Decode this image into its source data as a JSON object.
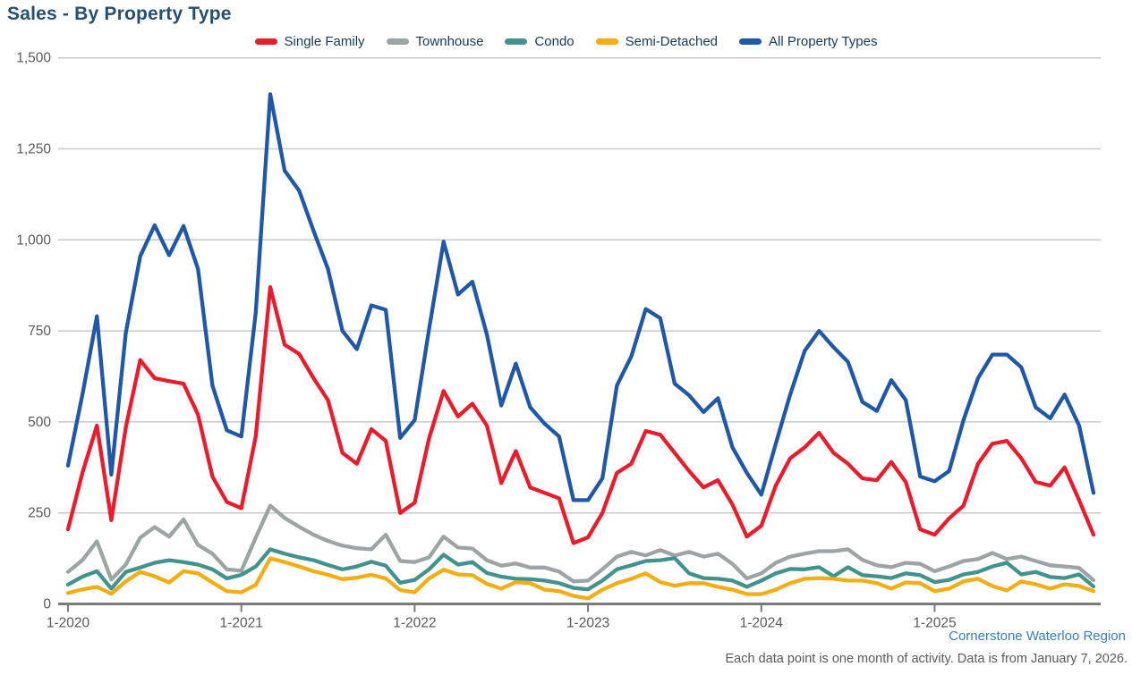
{
  "ui": {
    "title": "Sales - By Property Type",
    "footer": {
      "source": "Cornerstone Waterloo Region",
      "note": "Each data point is one month of activity. Data is from January 7, 2026."
    }
  },
  "chart_data": {
    "type": "line",
    "title": "Sales - By Property Type",
    "xlabel": "",
    "ylabel": "",
    "ylim": [
      0,
      1500
    ],
    "grid": true,
    "legend_position": "top-center",
    "x_labels": [
      "1-2020",
      "2-2020",
      "3-2020",
      "4-2020",
      "5-2020",
      "6-2020",
      "7-2020",
      "8-2020",
      "9-2020",
      "10-2020",
      "11-2020",
      "12-2020",
      "1-2021",
      "2-2021",
      "3-2021",
      "4-2021",
      "5-2021",
      "6-2021",
      "7-2021",
      "8-2021",
      "9-2021",
      "10-2021",
      "11-2021",
      "12-2021",
      "1-2022",
      "2-2022",
      "3-2022",
      "4-2022",
      "5-2022",
      "6-2022",
      "7-2022",
      "8-2022",
      "9-2022",
      "10-2022",
      "11-2022",
      "12-2022",
      "1-2023",
      "2-2023",
      "3-2023",
      "4-2023",
      "5-2023",
      "6-2023",
      "7-2023",
      "8-2023",
      "9-2023",
      "10-2023",
      "11-2023",
      "12-2023",
      "1-2024",
      "2-2024",
      "3-2024",
      "4-2024",
      "5-2024",
      "6-2024",
      "7-2024",
      "8-2024",
      "9-2024",
      "10-2024",
      "11-2024",
      "12-2024",
      "1-2025",
      "2-2025",
      "3-2025",
      "4-2025",
      "5-2025",
      "6-2025",
      "7-2025",
      "8-2025",
      "9-2025",
      "10-2025",
      "11-2025",
      "12-2025"
    ],
    "x_axis": {
      "ticks": [
        {
          "index": 0,
          "label": "1-2020"
        },
        {
          "index": 12,
          "label": "1-2021"
        },
        {
          "index": 24,
          "label": "1-2022"
        },
        {
          "index": 36,
          "label": "1-2023"
        },
        {
          "index": 48,
          "label": "1-2024"
        },
        {
          "index": 60,
          "label": "1-2025"
        }
      ]
    },
    "y_axis": {
      "ticks": [
        {
          "value": 1500,
          "label": "1,500"
        },
        {
          "value": 1250,
          "label": "1,250"
        },
        {
          "value": 1000,
          "label": "1,000"
        },
        {
          "value": 750,
          "label": "750"
        },
        {
          "value": 500,
          "label": "500"
        },
        {
          "value": 250,
          "label": "250"
        },
        {
          "value": 0,
          "label": "0"
        }
      ]
    },
    "series": [
      {
        "name": "Single Family",
        "color": "#e81c2c",
        "z": 4,
        "values": [
          205,
          360,
          490,
          230,
          485,
          670,
          620,
          612,
          605,
          520,
          350,
          280,
          263,
          460,
          870,
          712,
          687,
          620,
          560,
          415,
          385,
          480,
          448,
          250,
          278,
          455,
          585,
          515,
          550,
          490,
          332,
          420,
          320,
          305,
          290,
          167,
          183,
          250,
          360,
          385,
          475,
          465,
          415,
          365,
          320,
          340,
          273,
          185,
          215,
          325,
          400,
          430,
          470,
          415,
          385,
          345,
          340,
          390,
          335,
          205,
          190,
          235,
          270,
          385,
          440,
          448,
          400,
          335,
          325,
          375,
          285,
          190
        ]
      },
      {
        "name": "Townhouse",
        "color": "#9da4a4",
        "z": 1,
        "values": [
          88,
          120,
          172,
          67,
          108,
          182,
          211,
          185,
          232,
          162,
          138,
          95,
          91,
          182,
          270,
          236,
          212,
          190,
          173,
          160,
          153,
          150,
          190,
          118,
          115,
          128,
          185,
          155,
          152,
          120,
          105,
          111,
          100,
          100,
          89,
          62,
          64,
          95,
          130,
          143,
          133,
          148,
          133,
          143,
          130,
          138,
          110,
          70,
          84,
          113,
          130,
          138,
          145,
          145,
          150,
          121,
          106,
          101,
          113,
          110,
          90,
          103,
          118,
          123,
          140,
          123,
          130,
          118,
          106,
          103,
          99,
          65
        ]
      },
      {
        "name": "Condo",
        "color": "#42938e",
        "z": 2,
        "values": [
          53,
          75,
          90,
          42,
          88,
          100,
          113,
          120,
          115,
          108,
          95,
          70,
          80,
          103,
          150,
          138,
          128,
          120,
          107,
          95,
          103,
          116,
          105,
          58,
          66,
          95,
          135,
          108,
          115,
          85,
          75,
          69,
          68,
          64,
          57,
          44,
          40,
          64,
          95,
          106,
          118,
          120,
          126,
          84,
          71,
          69,
          64,
          47,
          64,
          84,
          96,
          95,
          101,
          76,
          101,
          79,
          76,
          71,
          84,
          79,
          60,
          66,
          81,
          88,
          103,
          113,
          81,
          88,
          74,
          71,
          81,
          48
        ]
      },
      {
        "name": "Semi-Detached",
        "color": "#f2ae14",
        "z": 3,
        "values": [
          30,
          40,
          47,
          28,
          62,
          88,
          76,
          59,
          90,
          84,
          59,
          35,
          32,
          52,
          125,
          115,
          103,
          90,
          80,
          68,
          72,
          80,
          70,
          38,
          32,
          70,
          94,
          81,
          79,
          55,
          42,
          60,
          57,
          39,
          35,
          22,
          15,
          39,
          57,
          69,
          84,
          60,
          50,
          57,
          57,
          47,
          39,
          27,
          27,
          39,
          57,
          69,
          71,
          69,
          64,
          64,
          57,
          42,
          59,
          57,
          35,
          42,
          62,
          69,
          49,
          37,
          62,
          54,
          42,
          54,
          49,
          35
        ]
      },
      {
        "name": "All Property Types",
        "color": "#2057a7",
        "z": 5,
        "values": [
          380,
          575,
          790,
          355,
          745,
          955,
          1040,
          958,
          1038,
          920,
          600,
          477,
          460,
          800,
          1400,
          1190,
          1135,
          1025,
          920,
          750,
          700,
          820,
          808,
          456,
          505,
          755,
          995,
          850,
          885,
          740,
          545,
          660,
          540,
          495,
          460,
          285,
          285,
          345,
          600,
          680,
          810,
          785,
          605,
          573,
          527,
          565,
          430,
          360,
          300,
          440,
          575,
          695,
          750,
          705,
          665,
          555,
          530,
          615,
          560,
          350,
          337,
          365,
          505,
          620,
          685,
          685,
          650,
          540,
          510,
          575,
          490,
          305
        ]
      }
    ],
    "style": {
      "gridline_color": "#c9c9c9",
      "axis_color": "#7a7a7a",
      "tick_label_color": "#595959",
      "line_width": 4.3
    }
  }
}
